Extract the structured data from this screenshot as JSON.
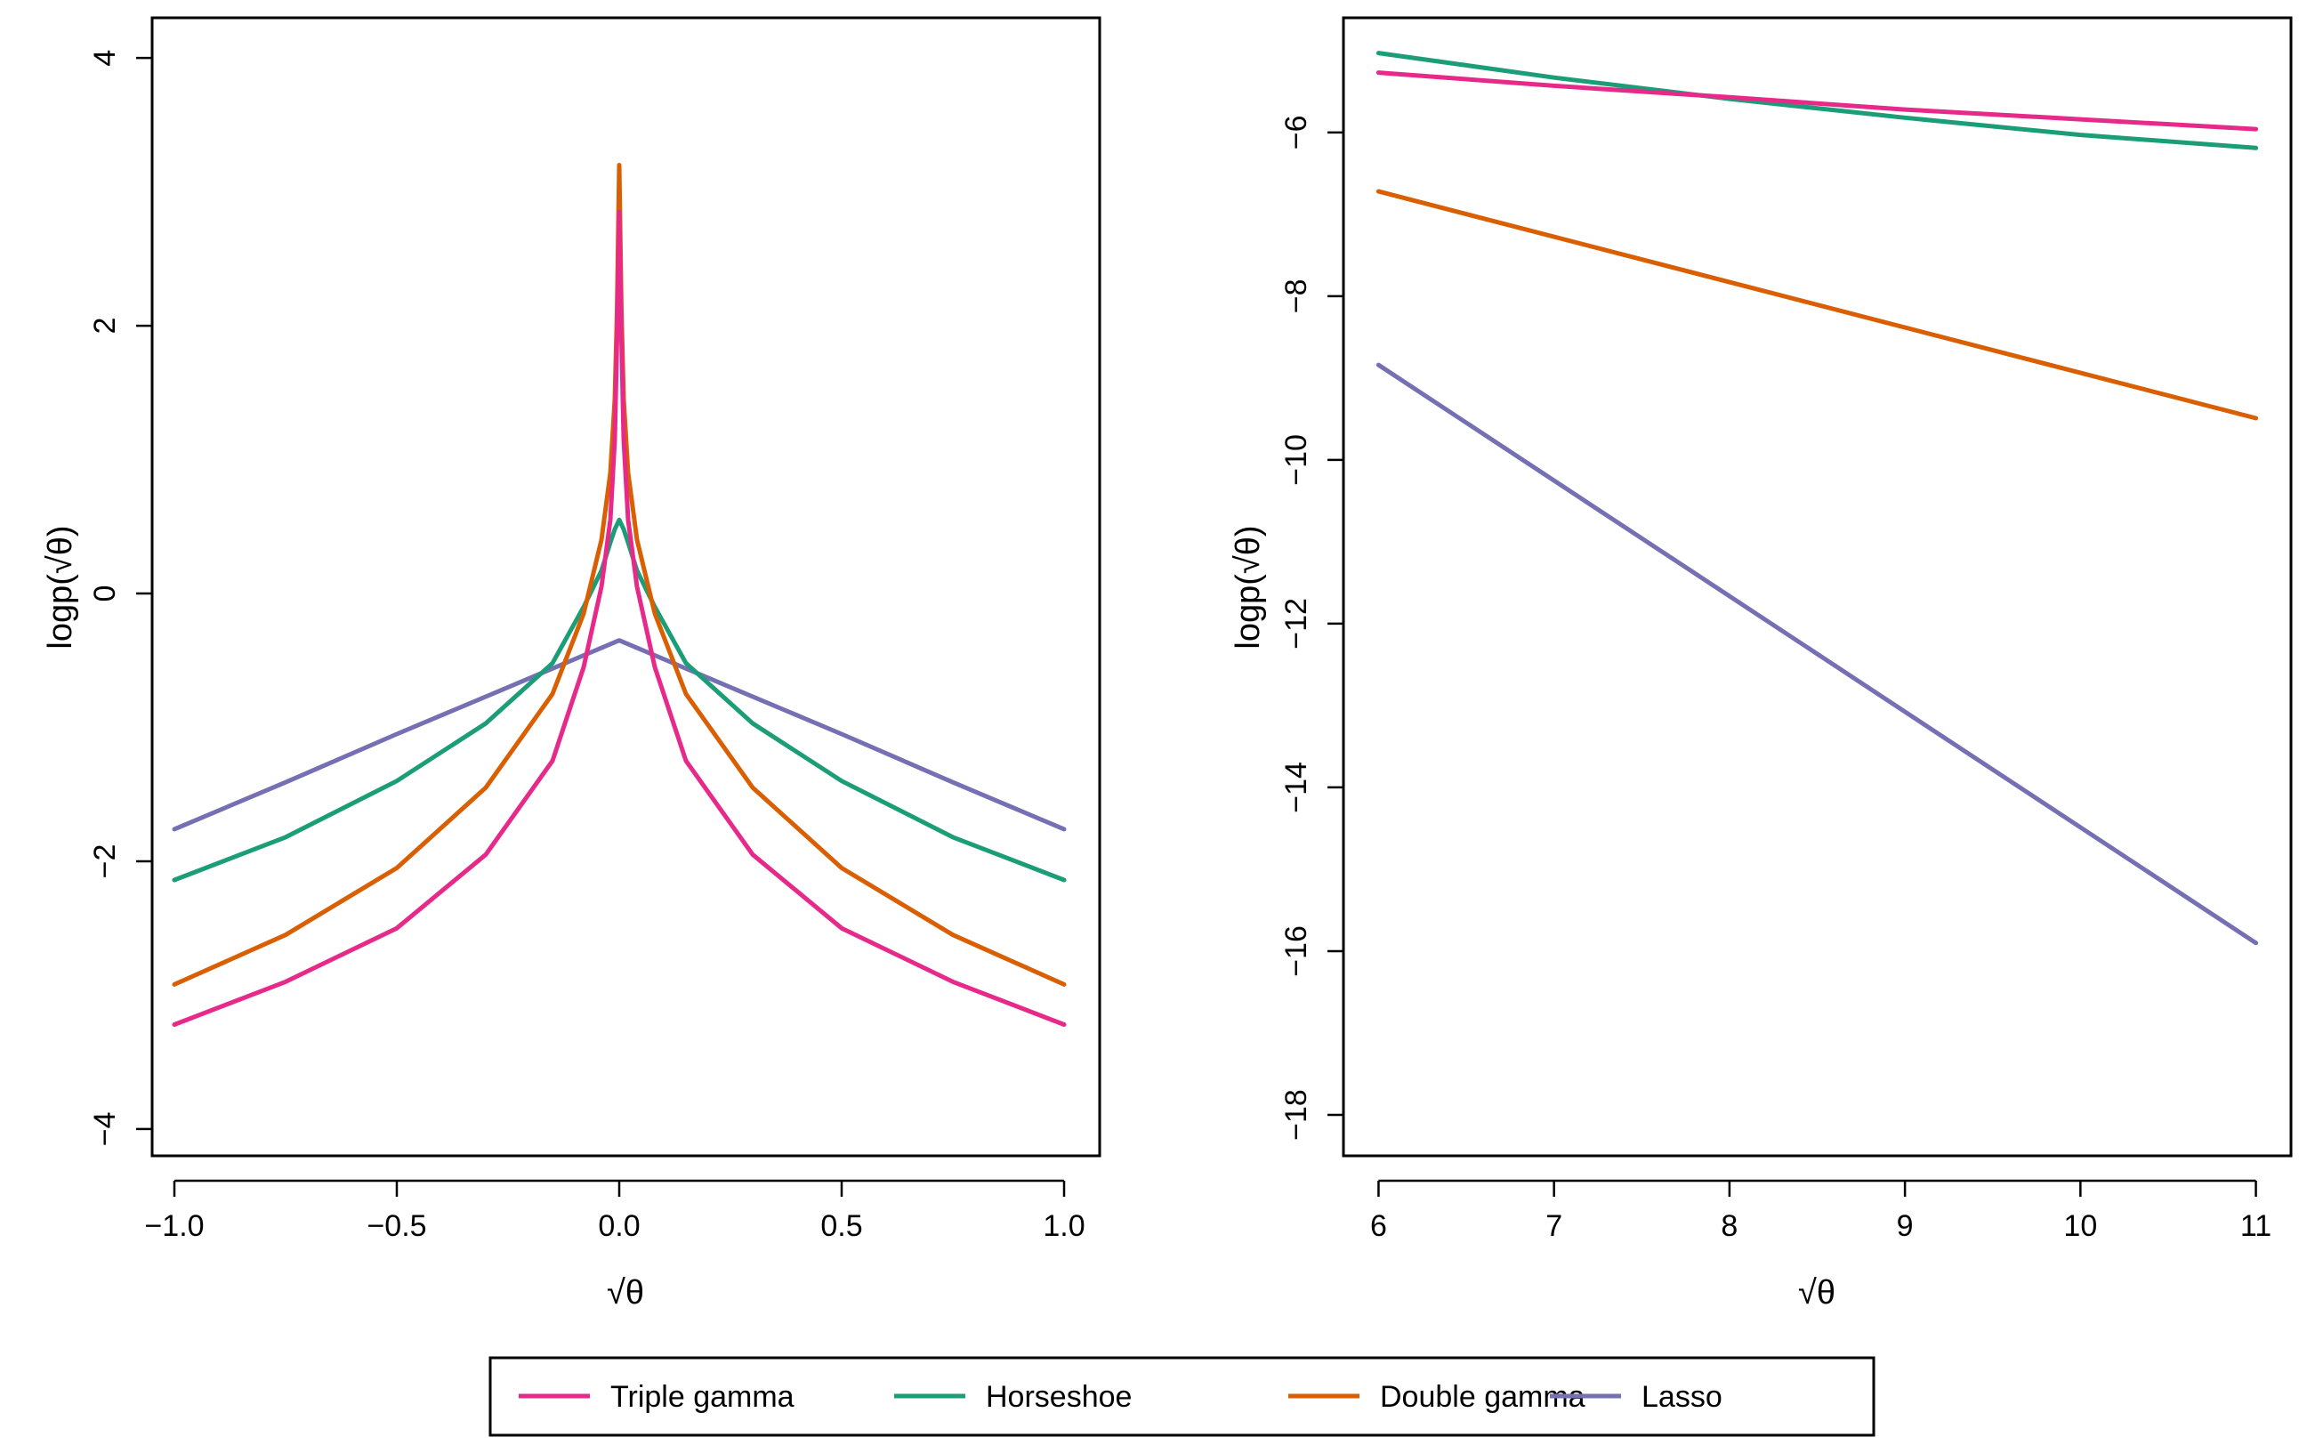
{
  "chart_data": [
    {
      "type": "line",
      "panel": "left",
      "xlabel": "√θ",
      "ylabel": "logp(√θ)",
      "xlim": [
        -1.05,
        1.08
      ],
      "ylim": [
        -4.2,
        4.3
      ],
      "xticks": [
        -1.0,
        -0.5,
        0.0,
        0.5,
        1.0
      ],
      "xtick_labels": [
        "−1.0",
        "−0.5",
        "0.0",
        "0.5",
        "1.0"
      ],
      "yticks": [
        -4,
        -2,
        0,
        2,
        4
      ],
      "ytick_labels": [
        "−4",
        "−2",
        "0",
        "2",
        "4"
      ],
      "series": [
        {
          "name": "Lasso",
          "color": "#7570b3",
          "x": [
            -1.0,
            -0.75,
            -0.5,
            -0.25,
            0.0,
            0.25,
            0.5,
            0.75,
            1.0
          ],
          "y": [
            -1.76,
            -1.41,
            -1.05,
            -0.7,
            -0.35,
            -0.7,
            -1.05,
            -1.41,
            -1.76
          ]
        },
        {
          "name": "Horseshoe",
          "color": "#1b9e77",
          "x": [
            -1.0,
            -0.75,
            -0.5,
            -0.3,
            -0.15,
            -0.08,
            -0.04,
            -0.02,
            -0.01,
            0.0,
            0.01,
            0.02,
            0.04,
            0.08,
            0.15,
            0.3,
            0.5,
            0.75,
            1.0
          ],
          "y": [
            -2.14,
            -1.82,
            -1.4,
            -0.97,
            -0.52,
            -0.1,
            0.17,
            0.38,
            0.48,
            0.55,
            0.48,
            0.38,
            0.17,
            -0.1,
            -0.52,
            -0.97,
            -1.4,
            -1.82,
            -2.14
          ]
        },
        {
          "name": "Double gamma",
          "color": "#d95f02",
          "x": [
            -1.0,
            -0.75,
            -0.5,
            -0.3,
            -0.15,
            -0.08,
            -0.04,
            -0.02,
            -0.01,
            -0.005,
            0.0,
            0.005,
            0.01,
            0.02,
            0.04,
            0.08,
            0.15,
            0.3,
            0.5,
            0.75,
            1.0
          ],
          "y": [
            -2.92,
            -2.55,
            -2.05,
            -1.45,
            -0.75,
            -0.15,
            0.4,
            0.9,
            1.45,
            2.1,
            3.2,
            2.1,
            1.45,
            0.9,
            0.4,
            -0.15,
            -0.75,
            -1.45,
            -2.05,
            -2.55,
            -2.92
          ]
        },
        {
          "name": "Triple gamma",
          "color": "#e7298a",
          "x": [
            -1.0,
            -0.75,
            -0.5,
            -0.3,
            -0.15,
            -0.08,
            -0.04,
            -0.02,
            -0.01,
            -0.005,
            0.0,
            0.005,
            0.01,
            0.02,
            0.04,
            0.08,
            0.15,
            0.3,
            0.5,
            0.75,
            1.0
          ],
          "y": [
            -3.22,
            -2.9,
            -2.5,
            -1.95,
            -1.25,
            -0.55,
            0.05,
            0.55,
            1.15,
            1.9,
            2.85,
            1.9,
            1.15,
            0.55,
            0.05,
            -0.55,
            -1.25,
            -1.95,
            -2.5,
            -2.9,
            -3.22
          ]
        }
      ]
    },
    {
      "type": "line",
      "panel": "right",
      "xlabel": "√θ",
      "ylabel": "logp(√θ)",
      "xlim": [
        5.8,
        11.2
      ],
      "ylim": [
        -18.5,
        -4.6
      ],
      "xticks": [
        6,
        7,
        8,
        9,
        10,
        11
      ],
      "xtick_labels": [
        "6",
        "7",
        "8",
        "9",
        "10",
        "11"
      ],
      "yticks": [
        -18,
        -16,
        -14,
        -12,
        -10,
        -8,
        -6
      ],
      "ytick_labels": [
        "−18",
        "−16",
        "−14",
        "−12",
        "−10",
        "−8",
        "−6"
      ],
      "series": [
        {
          "name": "Horseshoe",
          "color": "#1b9e77",
          "x": [
            6,
            7,
            8,
            9,
            10,
            11
          ],
          "y": [
            -5.03,
            -5.33,
            -5.59,
            -5.82,
            -6.03,
            -6.19
          ]
        },
        {
          "name": "Triple gamma",
          "color": "#e7298a",
          "x": [
            6,
            7,
            8,
            9,
            10,
            11
          ],
          "y": [
            -5.27,
            -5.43,
            -5.57,
            -5.72,
            -5.84,
            -5.96
          ]
        },
        {
          "name": "Double gamma",
          "color": "#d95f02",
          "x": [
            6,
            11
          ],
          "y": [
            -6.72,
            -9.49
          ]
        },
        {
          "name": "Lasso",
          "color": "#7570b3",
          "x": [
            6,
            11
          ],
          "y": [
            -8.84,
            -15.9
          ]
        }
      ]
    }
  ],
  "legend": {
    "placement": "bottom-center",
    "entries": [
      {
        "label": "Triple gamma",
        "color": "#e7298a"
      },
      {
        "label": "Horseshoe",
        "color": "#1b9e77"
      },
      {
        "label": "Double gamma",
        "color": "#d95f02"
      },
      {
        "label": "Lasso",
        "color": "#7570b3"
      }
    ]
  }
}
